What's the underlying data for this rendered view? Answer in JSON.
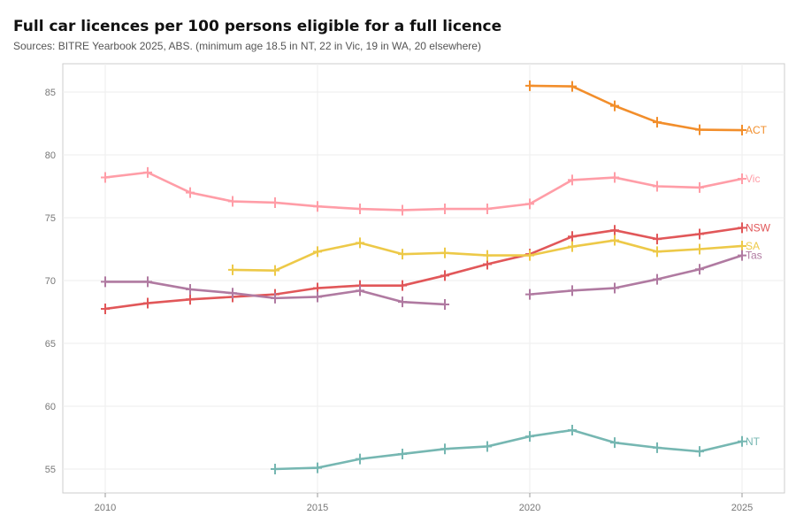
{
  "chart_data": {
    "type": "line",
    "title": "Full car licences per 100 persons eligible for a full licence",
    "subtitle": "Sources: BITRE Yearbook 2025, ABS. (minimum age 18.5 in NT, 22 in Vic, 19 in WA, 20 elsewhere)",
    "xlim": [
      2009,
      2026
    ],
    "ylim": [
      53.2,
      87.2
    ],
    "xticks": [
      2010,
      2015,
      2020,
      2025
    ],
    "yticks": [
      55,
      60,
      65,
      70,
      75,
      80,
      85
    ],
    "grid": true,
    "legend": "end-of-line labels",
    "x": [
      2010,
      2011,
      2012,
      2013,
      2014,
      2015,
      2016,
      2017,
      2018,
      2019,
      2020,
      2021,
      2022,
      2023,
      2024,
      2025
    ],
    "series": [
      {
        "name": "ACT",
        "color": "#f28e2b",
        "values": [
          null,
          null,
          null,
          null,
          null,
          null,
          null,
          null,
          null,
          null,
          85.5,
          85.45,
          83.9,
          82.6,
          82.0,
          81.97
        ]
      },
      {
        "name": "Vic",
        "color": "#ff9da7",
        "values": [
          78.2,
          78.6,
          77.0,
          76.3,
          76.2,
          75.9,
          75.7,
          75.6,
          75.7,
          75.7,
          76.1,
          78.0,
          78.2,
          77.5,
          77.4,
          78.1
        ]
      },
      {
        "name": "NSW",
        "color": "#e15759",
        "values": [
          67.75,
          68.2,
          68.5,
          68.7,
          68.9,
          69.4,
          69.6,
          69.6,
          70.4,
          71.3,
          72.1,
          73.5,
          74.0,
          73.3,
          73.7,
          74.2
        ]
      },
      {
        "name": "SA",
        "color": "#edc948",
        "values": [
          null,
          null,
          null,
          70.85,
          70.8,
          72.3,
          73.0,
          72.1,
          72.2,
          72.0,
          72.0,
          72.7,
          73.2,
          72.3,
          72.5,
          72.75
        ]
      },
      {
        "name": "Tas",
        "color": "#b07aa1",
        "values": [
          69.9,
          69.9,
          69.3,
          69.0,
          68.6,
          68.7,
          69.2,
          68.3,
          68.1,
          null,
          68.9,
          69.2,
          69.4,
          70.1,
          70.9,
          72.0
        ]
      },
      {
        "name": "NT",
        "color": "#76b7b2",
        "values": [
          null,
          null,
          null,
          null,
          55.0,
          55.1,
          55.8,
          56.2,
          56.6,
          56.8,
          57.6,
          58.1,
          57.1,
          56.7,
          56.4,
          57.2
        ]
      }
    ]
  }
}
